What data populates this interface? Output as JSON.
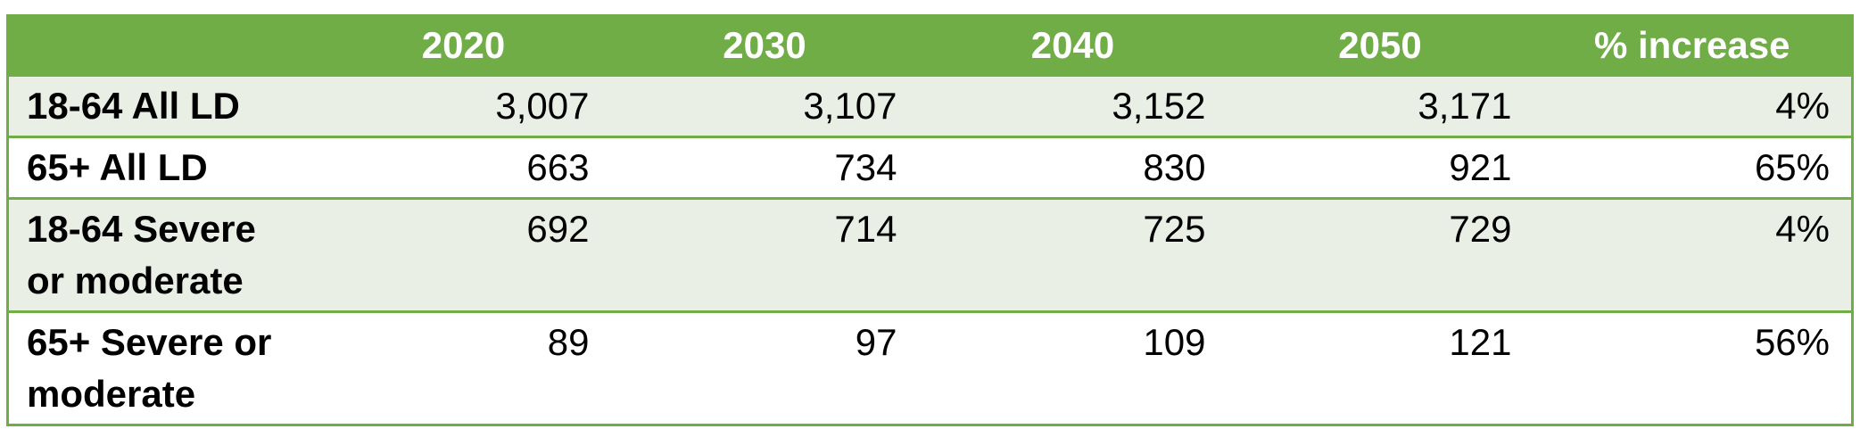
{
  "table": {
    "columns": [
      "2020",
      "2030",
      "2040",
      "2050",
      "% increase"
    ],
    "rows": [
      [
        "18-64 All LD",
        "3,007",
        "3,107",
        "3,152",
        "3,171",
        "4%"
      ],
      [
        "65+ All LD",
        "663",
        "734",
        "830",
        "921",
        "65%"
      ],
      [
        "18-64 Severe or moderate",
        "692",
        "714",
        "725",
        "729",
        "4%"
      ],
      [
        "65+ Severe or moderate",
        "89",
        "97",
        "109",
        "121",
        "56%"
      ]
    ]
  }
}
